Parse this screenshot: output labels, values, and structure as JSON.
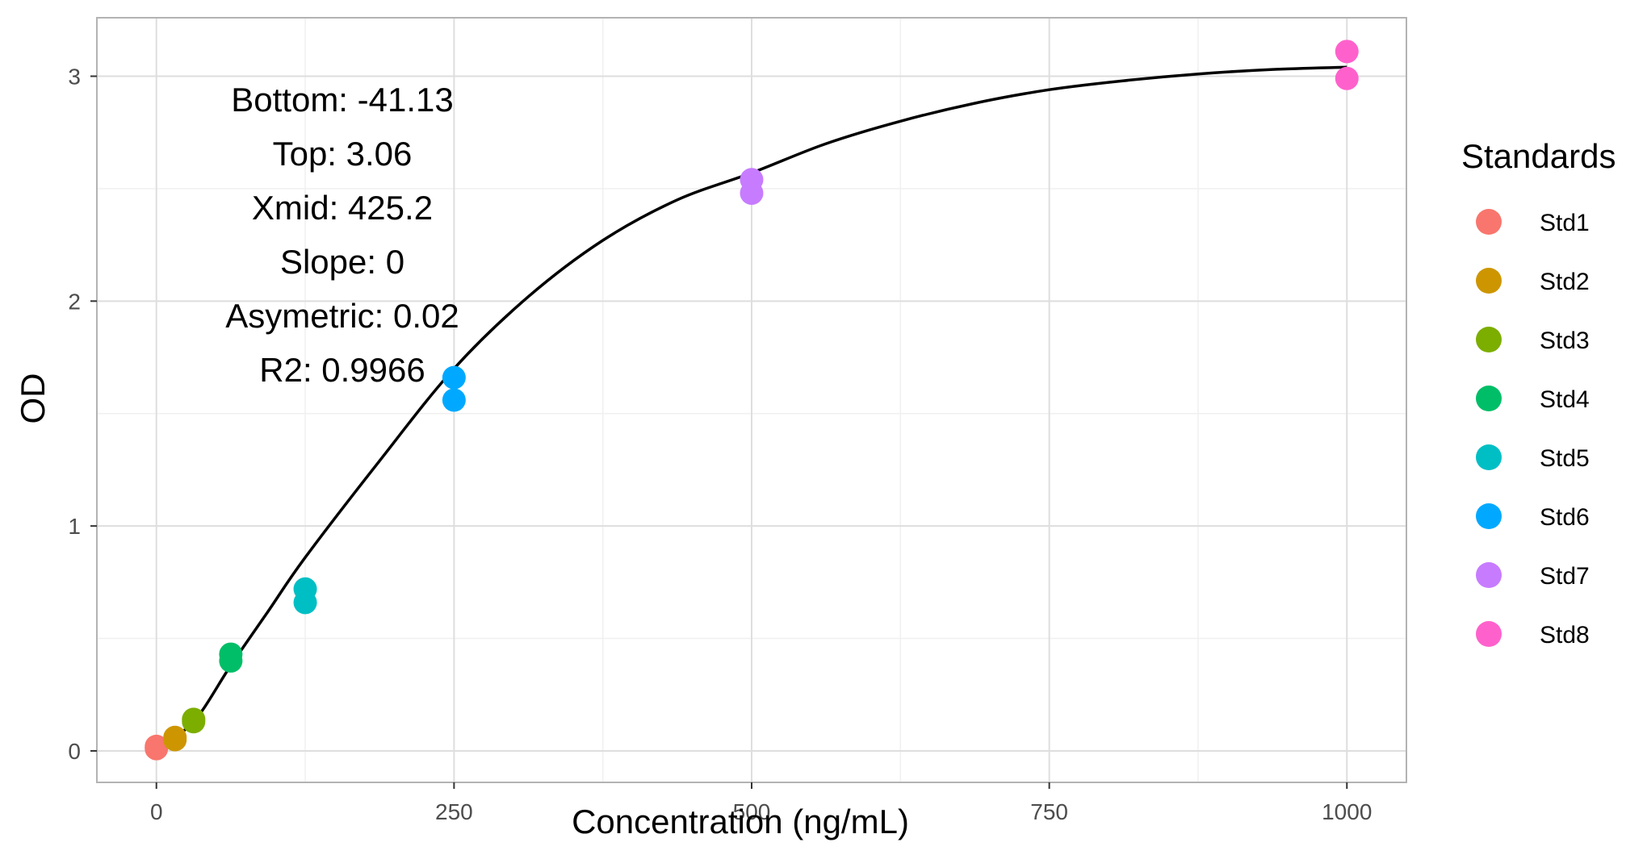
{
  "chart_data": {
    "type": "scatter",
    "xlabel": "Concentration (ng/mL)",
    "ylabel": "OD",
    "xlim": [
      -50,
      1050
    ],
    "ylim": [
      -0.14,
      3.26
    ],
    "x_ticks": [
      0,
      250,
      500,
      750,
      1000
    ],
    "x_tick_labels": [
      "0",
      "250",
      "500",
      "750",
      "1000"
    ],
    "x_minor_ticks": [
      125,
      375,
      625,
      875
    ],
    "y_ticks": [
      0,
      1,
      2,
      3
    ],
    "y_tick_labels": [
      "0",
      "1",
      "2",
      "3"
    ],
    "y_minor_ticks": [
      0.5,
      1.5,
      2.5
    ],
    "grid": true,
    "legend": {
      "title": "Standards",
      "position": "right"
    },
    "series": [
      {
        "name": "Std1",
        "color": "#F8766D",
        "points": [
          [
            0,
            0.01
          ],
          [
            0,
            0.02
          ]
        ]
      },
      {
        "name": "Std2",
        "color": "#CD9600",
        "points": [
          [
            15.6,
            0.05
          ],
          [
            15.6,
            0.06
          ]
        ]
      },
      {
        "name": "Std3",
        "color": "#7CAE00",
        "points": [
          [
            31.25,
            0.13
          ],
          [
            31.25,
            0.14
          ]
        ]
      },
      {
        "name": "Std4",
        "color": "#00BE67",
        "points": [
          [
            62.5,
            0.4
          ],
          [
            62.5,
            0.43
          ]
        ]
      },
      {
        "name": "Std5",
        "color": "#00BFC4",
        "points": [
          [
            125,
            0.66
          ],
          [
            125,
            0.72
          ]
        ]
      },
      {
        "name": "Std6",
        "color": "#00A9FF",
        "points": [
          [
            250,
            1.56
          ],
          [
            250,
            1.66
          ]
        ]
      },
      {
        "name": "Std7",
        "color": "#C77CFF",
        "points": [
          [
            500,
            2.48
          ],
          [
            500,
            2.54
          ]
        ]
      },
      {
        "name": "Std8",
        "color": "#FF61CC",
        "points": [
          [
            1000,
            2.99
          ],
          [
            1000,
            3.11
          ]
        ]
      }
    ],
    "fit_curve": {
      "color": "#000000",
      "points": [
        [
          0,
          0.01
        ],
        [
          31.25,
          0.13
        ],
        [
          62.5,
          0.38
        ],
        [
          93.75,
          0.62
        ],
        [
          125,
          0.86
        ],
        [
          187.5,
          1.29
        ],
        [
          250,
          1.7
        ],
        [
          312.5,
          2.02
        ],
        [
          375,
          2.27
        ],
        [
          437.5,
          2.45
        ],
        [
          500,
          2.57
        ],
        [
          562.5,
          2.7
        ],
        [
          625,
          2.8
        ],
        [
          687.5,
          2.88
        ],
        [
          750,
          2.94
        ],
        [
          812.5,
          2.98
        ],
        [
          875,
          3.01
        ],
        [
          937.5,
          3.03
        ],
        [
          1000,
          3.04
        ]
      ]
    },
    "annotations": [
      "Bottom: -41.13",
      "Top: 3.06",
      "Xmid: 425.2",
      "Slope: 0",
      "Asymetric: 0.02",
      "R2: 0.9966"
    ]
  }
}
